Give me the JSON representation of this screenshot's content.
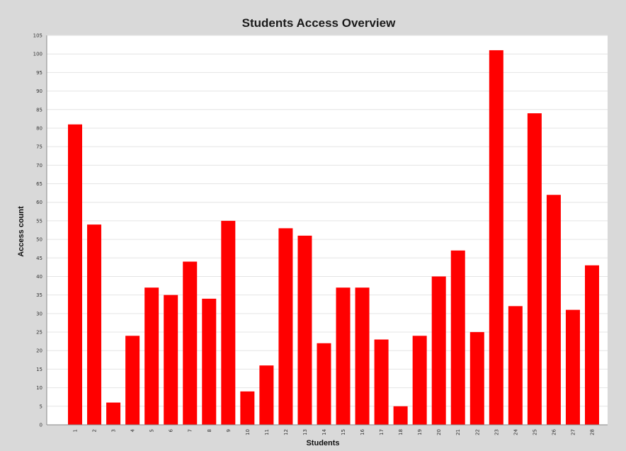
{
  "chart_data": {
    "type": "bar",
    "title": "Students Access Overview",
    "xlabel": "Students",
    "ylabel": "Access count",
    "categories": [
      "1",
      "2",
      "3",
      "4",
      "5",
      "6",
      "7",
      "8",
      "9",
      "10",
      "11",
      "12",
      "13",
      "14",
      "15",
      "16",
      "17",
      "18",
      "19",
      "20",
      "21",
      "22",
      "23",
      "24",
      "25",
      "26",
      "27",
      "28"
    ],
    "series": [
      {
        "values": [
          81,
          54,
          6,
          24,
          37,
          35,
          44,
          34,
          55,
          9,
          16,
          53,
          51,
          22,
          37,
          37,
          23,
          5,
          24,
          40,
          47,
          25,
          101,
          32,
          84,
          62,
          31,
          43
        ],
        "color": "#ff0000"
      }
    ],
    "ylim": [
      0,
      105
    ],
    "yticks": [
      0,
      5,
      10,
      15,
      20,
      25,
      30,
      35,
      40,
      45,
      50,
      55,
      60,
      65,
      70,
      75,
      80,
      85,
      90,
      95,
      100,
      105
    ],
    "grid": true,
    "legend": "none"
  }
}
